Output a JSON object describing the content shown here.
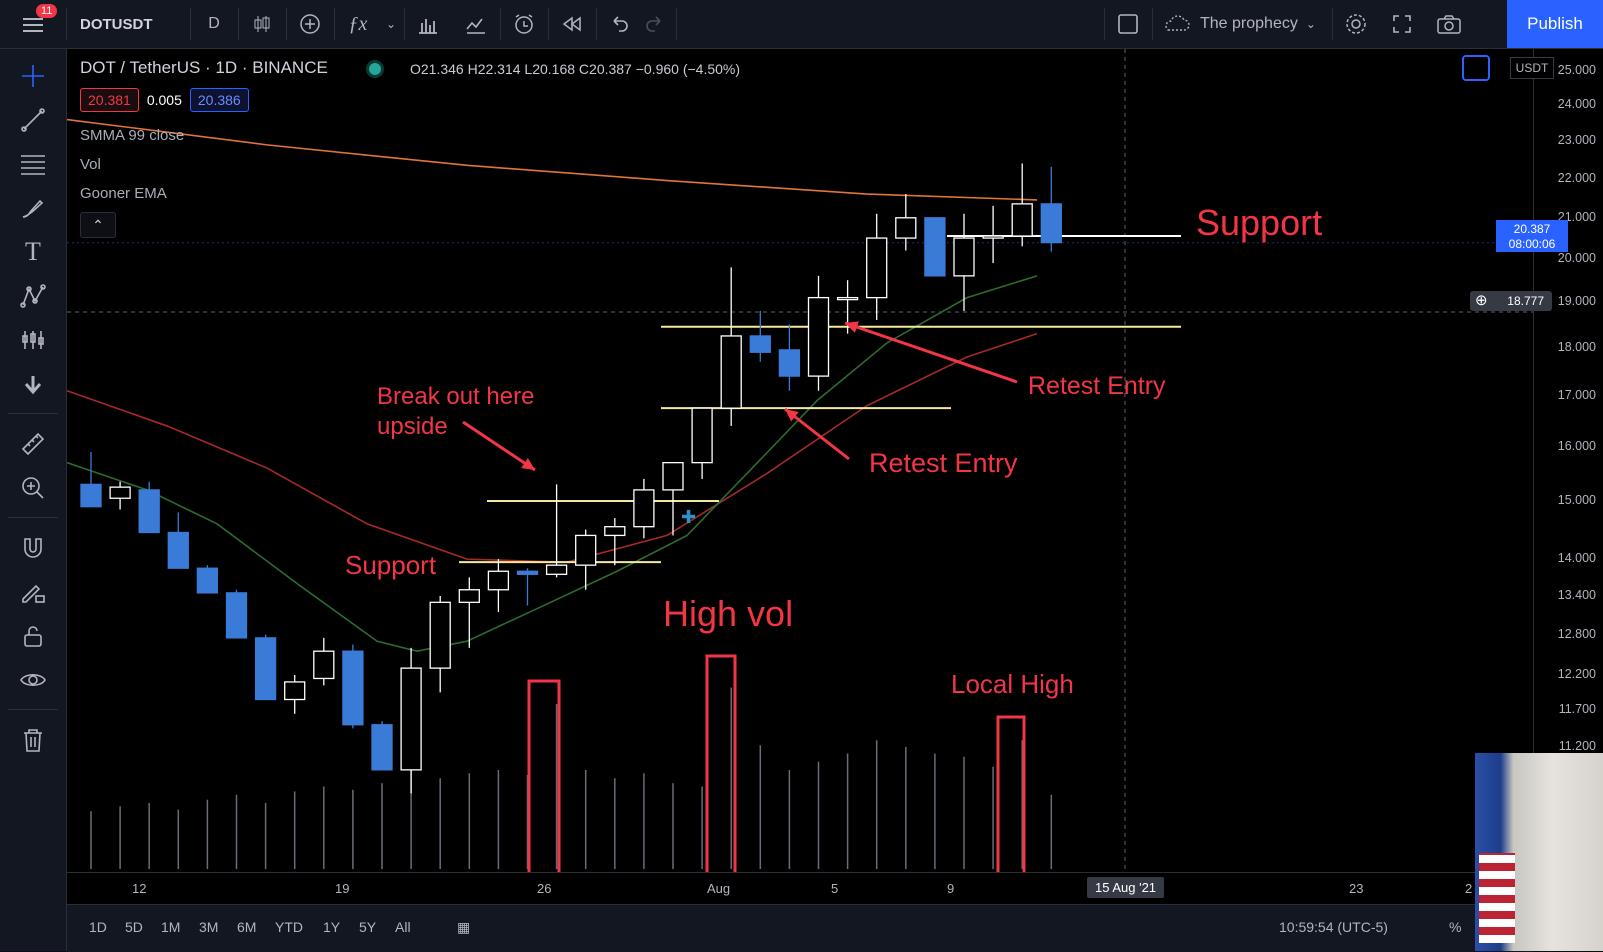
{
  "topbar": {
    "notifications": "11",
    "symbol": "DOTUSDT",
    "interval": "D",
    "layout_name": "The prophecy",
    "publish": "Publish"
  },
  "legend": {
    "title": "DOT / TetherUS · 1D · BINANCE",
    "ohlc": "O21.346 H22.314 L20.168 C20.387 −0.960 (−4.50%)",
    "bid": "20.381",
    "spread": "0.005",
    "ask": "20.386",
    "indicators": [
      "SMMA 99 close",
      "Vol",
      "Gooner EMA"
    ]
  },
  "price_axis": {
    "currency": "USDT",
    "ticks": [
      "25.000",
      "24.000",
      "23.000",
      "22.000",
      "21.000",
      "20.000",
      "19.000",
      "18.000",
      "17.000",
      "16.000",
      "15.000",
      "14.000",
      "13.400",
      "12.800",
      "12.200",
      "11.700",
      "11.200"
    ],
    "last_price": "20.387",
    "countdown": "08:00:06",
    "crosshair_price": "18.777"
  },
  "time_axis": {
    "labels": [
      "12",
      "19",
      "26",
      "Aug",
      "5",
      "9",
      "23",
      "2"
    ],
    "crosshair_date": "15 Aug '21"
  },
  "bottombar": {
    "ranges": [
      "1D",
      "5D",
      "1M",
      "3M",
      "6M",
      "YTD",
      "1Y",
      "5Y",
      "All"
    ],
    "clock": "10:59:54 (UTC-5)",
    "percent": "%"
  },
  "annotations": {
    "support_top": "Support",
    "support_low": "Support",
    "breakout": "Break out here upside",
    "retest_1": "Retest Entry",
    "retest_2": "Retest Entry",
    "high_vol": "High vol",
    "local_high": "Local High"
  },
  "colors": {
    "up_candle": "#ffffff",
    "down_candle": "#3b7bd8",
    "annotation": "#f23645",
    "smma": "#e0743a",
    "ema_green": "#2e6b2e",
    "ema_red": "#a52a2a",
    "horizontal_line": "#f5e9a0"
  },
  "chart_data": {
    "type": "candlestick",
    "symbol": "DOTUSDT",
    "interval": "1D",
    "candles": [
      {
        "o": 15.3,
        "h": 15.9,
        "l": 15.0,
        "c": 14.9
      },
      {
        "o": 15.05,
        "h": 15.35,
        "l": 14.85,
        "c": 15.25
      },
      {
        "o": 15.2,
        "h": 15.35,
        "l": 14.45,
        "c": 14.45
      },
      {
        "o": 14.45,
        "h": 14.8,
        "l": 13.85,
        "c": 13.85
      },
      {
        "o": 13.85,
        "h": 13.9,
        "l": 13.5,
        "c": 13.45
      },
      {
        "o": 13.45,
        "h": 13.5,
        "l": 12.75,
        "c": 12.75
      },
      {
        "o": 12.75,
        "h": 12.8,
        "l": 11.85,
        "c": 11.85
      },
      {
        "o": 11.85,
        "h": 12.2,
        "l": 11.65,
        "c": 12.1
      },
      {
        "o": 12.15,
        "h": 12.75,
        "l": 12.05,
        "c": 12.55
      },
      {
        "o": 12.55,
        "h": 12.65,
        "l": 11.45,
        "c": 11.5
      },
      {
        "o": 11.5,
        "h": 11.55,
        "l": 10.9,
        "c": 10.9
      },
      {
        "o": 10.9,
        "h": 12.6,
        "l": 10.6,
        "c": 12.3
      },
      {
        "o": 12.3,
        "h": 13.4,
        "l": 11.95,
        "c": 13.3
      },
      {
        "o": 13.3,
        "h": 13.7,
        "l": 12.6,
        "c": 13.5
      },
      {
        "o": 13.5,
        "h": 14.0,
        "l": 13.15,
        "c": 13.8
      },
      {
        "o": 13.8,
        "h": 13.85,
        "l": 13.25,
        "c": 13.75
      },
      {
        "o": 13.75,
        "h": 15.3,
        "l": 13.7,
        "c": 13.9
      },
      {
        "o": 13.9,
        "h": 14.5,
        "l": 13.5,
        "c": 14.4
      },
      {
        "o": 14.4,
        "h": 14.7,
        "l": 13.9,
        "c": 14.55
      },
      {
        "o": 14.55,
        "h": 15.4,
        "l": 14.35,
        "c": 15.2
      },
      {
        "o": 15.2,
        "h": 15.6,
        "l": 14.4,
        "c": 15.7
      },
      {
        "o": 15.7,
        "h": 16.7,
        "l": 15.4,
        "c": 16.75
      },
      {
        "o": 16.75,
        "h": 19.8,
        "l": 16.4,
        "c": 18.25
      },
      {
        "o": 18.25,
        "h": 18.8,
        "l": 17.7,
        "c": 17.9
      },
      {
        "o": 17.95,
        "h": 18.5,
        "l": 17.1,
        "c": 17.4
      },
      {
        "o": 17.4,
        "h": 19.6,
        "l": 17.1,
        "c": 19.1
      },
      {
        "o": 19.1,
        "h": 19.5,
        "l": 18.3,
        "c": 19.1
      },
      {
        "o": 19.1,
        "h": 21.1,
        "l": 18.6,
        "c": 20.5
      },
      {
        "o": 20.5,
        "h": 21.6,
        "l": 20.2,
        "c": 21.0
      },
      {
        "o": 21.0,
        "h": 21.0,
        "l": 19.6,
        "c": 19.6
      },
      {
        "o": 19.6,
        "h": 21.1,
        "l": 18.8,
        "c": 20.5
      },
      {
        "o": 20.5,
        "h": 21.3,
        "l": 19.9,
        "c": 20.55
      },
      {
        "o": 20.55,
        "h": 22.4,
        "l": 20.3,
        "c": 21.35
      },
      {
        "o": 21.35,
        "h": 22.31,
        "l": 20.17,
        "c": 20.39
      }
    ],
    "volume_relative": [
      0.35,
      0.38,
      0.4,
      0.36,
      0.42,
      0.45,
      0.4,
      0.47,
      0.5,
      0.48,
      0.52,
      0.62,
      0.55,
      0.58,
      0.6,
      0.57,
      1.0,
      0.6,
      0.55,
      0.58,
      0.52,
      0.5,
      1.1,
      0.75,
      0.6,
      0.65,
      0.7,
      0.78,
      0.74,
      0.7,
      0.68,
      0.62,
      0.78,
      0.45
    ],
    "ylim": [
      10.8,
      25.0
    ],
    "y_scale": "log",
    "horizontal_levels": [
      20.55,
      18.45,
      16.75,
      15.0,
      13.95
    ],
    "indicators": [
      "SMMA 99 close",
      "Vol",
      "Gooner EMA"
    ]
  }
}
